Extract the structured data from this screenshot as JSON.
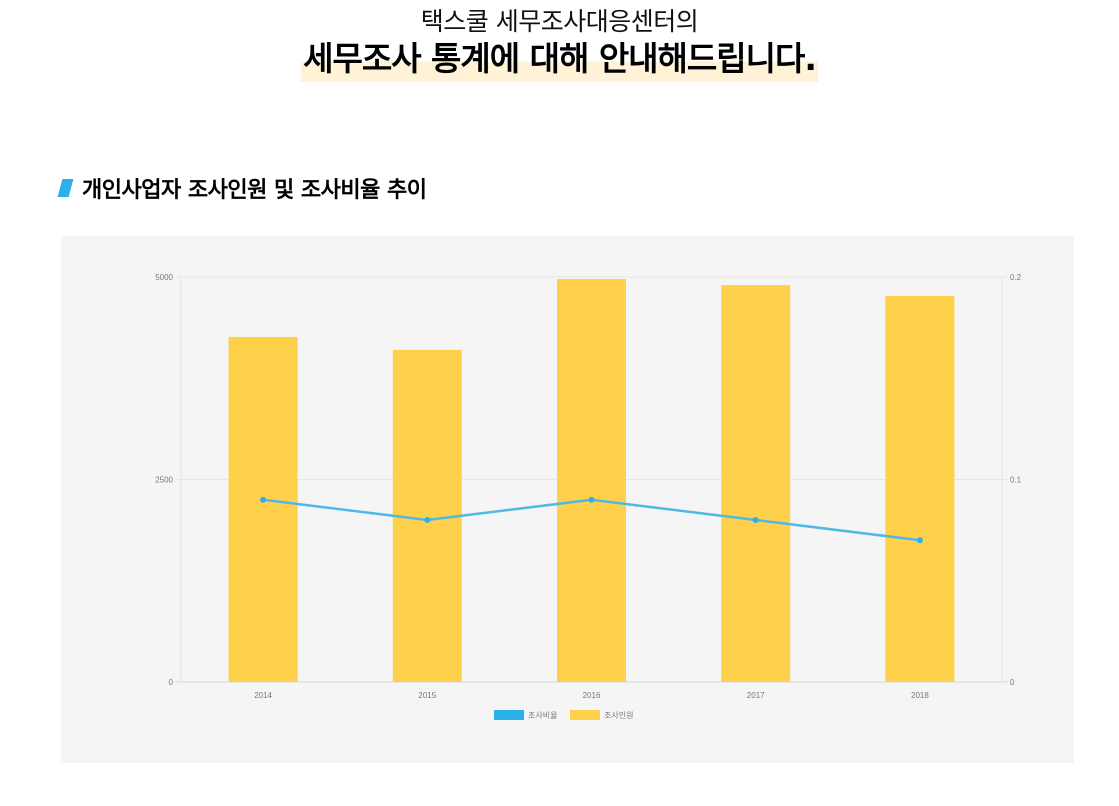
{
  "header": {
    "subtitle": "택스쿨 세무조사대응센터의",
    "title": "세무조사 통계에 대해 안내해드립니다."
  },
  "section": {
    "title": "개인사업자 조사인원 및 조사비율 추이",
    "accent_color": "#2bb0ea"
  },
  "chart_data": {
    "type": "bar",
    "title": "개인사업자 조사인원 및 조사비율 추이",
    "categories": [
      "2014",
      "2015",
      "2016",
      "2017",
      "2018"
    ],
    "series": [
      {
        "name": "조사비율",
        "type": "line",
        "axis": "right",
        "color": "#4fb8e8",
        "values": [
          0.09,
          0.08,
          0.09,
          0.08,
          0.07
        ]
      },
      {
        "name": "조사인원",
        "type": "bar",
        "axis": "left",
        "color": "#ffd04a",
        "values": [
          4260,
          4100,
          4975,
          4900,
          4765
        ]
      }
    ],
    "left_axis": {
      "ticks": [
        "0",
        "2500",
        "5000"
      ],
      "range": [
        0,
        5000
      ]
    },
    "right_axis": {
      "ticks": [
        "0",
        "0.1",
        "0.2"
      ],
      "range": [
        0,
        0.2
      ]
    },
    "xlabel": "",
    "ylabel": "",
    "grid": true,
    "legend_position": "bottom",
    "legend": [
      "조사비율",
      "조사인원"
    ]
  }
}
